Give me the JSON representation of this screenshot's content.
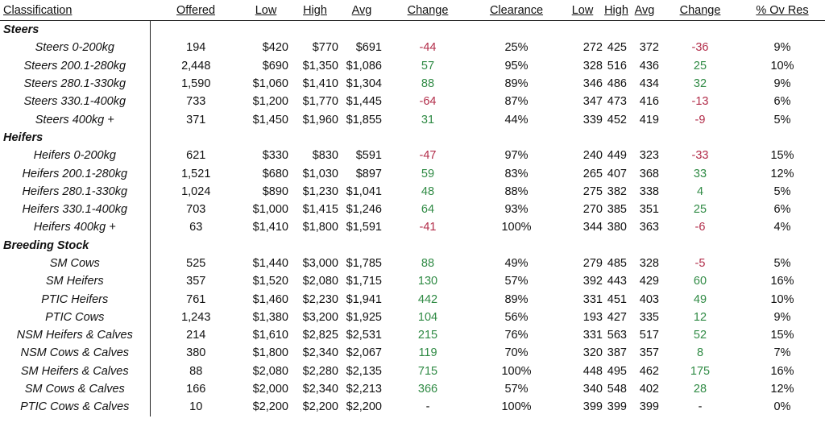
{
  "headers": {
    "classification": "Classification",
    "offered": "Offered",
    "low": "Low",
    "high": "High",
    "avg": "Avg",
    "change": "Change",
    "clearance": "Clearance",
    "low2": "Low",
    "high2": "High",
    "avg2": "Avg",
    "change2": "Change",
    "ovres": "% Ov Res"
  },
  "rows": [
    {
      "type": "group",
      "label": "Steers"
    },
    {
      "type": "item",
      "label": "Steers 0-200kg",
      "offered": "194",
      "low": "$420",
      "high": "$770",
      "avg": "$691",
      "change": "-44",
      "clearance": "25%",
      "low2": "272",
      "high2": "425",
      "avg2": "372",
      "change2": "-36",
      "ovres": "9%"
    },
    {
      "type": "item",
      "label": "Steers 200.1-280kg",
      "offered": "2,448",
      "low": "$690",
      "high": "$1,350",
      "avg": "$1,086",
      "change": "57",
      "clearance": "95%",
      "low2": "328",
      "high2": "516",
      "avg2": "436",
      "change2": "25",
      "ovres": "10%"
    },
    {
      "type": "item",
      "label": "Steers 280.1-330kg",
      "offered": "1,590",
      "low": "$1,060",
      "high": "$1,410",
      "avg": "$1,304",
      "change": "88",
      "clearance": "89%",
      "low2": "346",
      "high2": "486",
      "avg2": "434",
      "change2": "32",
      "ovres": "9%"
    },
    {
      "type": "item",
      "label": "Steers 330.1-400kg",
      "offered": "733",
      "low": "$1,200",
      "high": "$1,770",
      "avg": "$1,445",
      "change": "-64",
      "clearance": "87%",
      "low2": "347",
      "high2": "473",
      "avg2": "416",
      "change2": "-13",
      "ovres": "6%"
    },
    {
      "type": "item",
      "label": "Steers 400kg +",
      "offered": "371",
      "low": "$1,450",
      "high": "$1,960",
      "avg": "$1,855",
      "change": "31",
      "clearance": "44%",
      "low2": "339",
      "high2": "452",
      "avg2": "419",
      "change2": "-9",
      "ovres": "5%"
    },
    {
      "type": "group",
      "label": "Heifers"
    },
    {
      "type": "item",
      "label": "Heifers 0-200kg",
      "offered": "621",
      "low": "$330",
      "high": "$830",
      "avg": "$591",
      "change": "-47",
      "clearance": "97%",
      "low2": "240",
      "high2": "449",
      "avg2": "323",
      "change2": "-33",
      "ovres": "15%"
    },
    {
      "type": "item",
      "label": "Heifers 200.1-280kg",
      "offered": "1,521",
      "low": "$680",
      "high": "$1,030",
      "avg": "$897",
      "change": "59",
      "clearance": "83%",
      "low2": "265",
      "high2": "407",
      "avg2": "368",
      "change2": "33",
      "ovres": "12%"
    },
    {
      "type": "item",
      "label": "Heifers 280.1-330kg",
      "offered": "1,024",
      "low": "$890",
      "high": "$1,230",
      "avg": "$1,041",
      "change": "48",
      "clearance": "88%",
      "low2": "275",
      "high2": "382",
      "avg2": "338",
      "change2": "4",
      "ovres": "5%"
    },
    {
      "type": "item",
      "label": "Heifers 330.1-400kg",
      "offered": "703",
      "low": "$1,000",
      "high": "$1,415",
      "avg": "$1,246",
      "change": "64",
      "clearance": "93%",
      "low2": "270",
      "high2": "385",
      "avg2": "351",
      "change2": "25",
      "ovres": "6%"
    },
    {
      "type": "item",
      "label": "Heifers 400kg +",
      "offered": "63",
      "low": "$1,410",
      "high": "$1,800",
      "avg": "$1,591",
      "change": "-41",
      "clearance": "100%",
      "low2": "344",
      "high2": "380",
      "avg2": "363",
      "change2": "-6",
      "ovres": "4%"
    },
    {
      "type": "group",
      "label": "Breeding Stock"
    },
    {
      "type": "item",
      "label": "SM Cows",
      "offered": "525",
      "low": "$1,440",
      "high": "$3,000",
      "avg": "$1,785",
      "change": "88",
      "clearance": "49%",
      "low2": "279",
      "high2": "485",
      "avg2": "328",
      "change2": "-5",
      "ovres": "5%"
    },
    {
      "type": "item",
      "label": "SM Heifers",
      "offered": "357",
      "low": "$1,520",
      "high": "$2,080",
      "avg": "$1,715",
      "change": "130",
      "clearance": "57%",
      "low2": "392",
      "high2": "443",
      "avg2": "429",
      "change2": "60",
      "ovres": "16%"
    },
    {
      "type": "item",
      "label": "PTIC Heifers",
      "offered": "761",
      "low": "$1,460",
      "high": "$2,230",
      "avg": "$1,941",
      "change": "442",
      "clearance": "89%",
      "low2": "331",
      "high2": "451",
      "avg2": "403",
      "change2": "49",
      "ovres": "10%"
    },
    {
      "type": "item",
      "label": "PTIC Cows",
      "offered": "1,243",
      "low": "$1,380",
      "high": "$3,200",
      "avg": "$1,925",
      "change": "104",
      "clearance": "56%",
      "low2": "193",
      "high2": "427",
      "avg2": "335",
      "change2": "12",
      "ovres": "9%"
    },
    {
      "type": "item",
      "label": "NSM Heifers & Calves",
      "offered": "214",
      "low": "$1,610",
      "high": "$2,825",
      "avg": "$2,531",
      "change": "215",
      "clearance": "76%",
      "low2": "331",
      "high2": "563",
      "avg2": "517",
      "change2": "52",
      "ovres": "15%"
    },
    {
      "type": "item",
      "label": "NSM Cows & Calves",
      "offered": "380",
      "low": "$1,800",
      "high": "$2,340",
      "avg": "$2,067",
      "change": "119",
      "clearance": "70%",
      "low2": "320",
      "high2": "387",
      "avg2": "357",
      "change2": "8",
      "ovres": "7%"
    },
    {
      "type": "item",
      "label": "SM Heifers & Calves",
      "offered": "88",
      "low": "$2,080",
      "high": "$2,280",
      "avg": "$2,135",
      "change": "715",
      "clearance": "100%",
      "low2": "448",
      "high2": "495",
      "avg2": "462",
      "change2": "175",
      "ovres": "16%"
    },
    {
      "type": "item",
      "label": "SM Cows & Calves",
      "offered": "166",
      "low": "$2,000",
      "high": "$2,340",
      "avg": "$2,213",
      "change": "366",
      "clearance": "57%",
      "low2": "340",
      "high2": "548",
      "avg2": "402",
      "change2": "28",
      "ovres": "12%"
    },
    {
      "type": "item",
      "label": "PTIC Cows & Calves",
      "offered": "10",
      "low": "$2,200",
      "high": "$2,200",
      "avg": "$2,200",
      "change": "-",
      "clearance": "100%",
      "low2": "399",
      "high2": "399",
      "avg2": "399",
      "change2": "-",
      "ovres": "0%"
    }
  ]
}
